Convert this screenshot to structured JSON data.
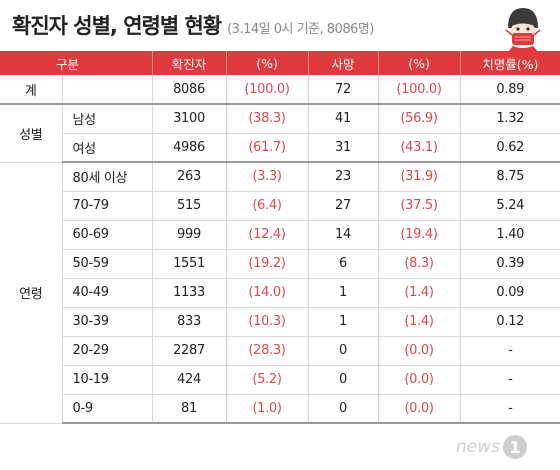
{
  "header": {
    "title": "확진자 성별, 연령별 현황",
    "subtitle": "(3.14일 0시 기준, 8086명)"
  },
  "table_header": [
    "구분",
    "확진자",
    "(%)",
    "사망",
    "(%)",
    "치명률(%)"
  ],
  "rows": {
    "total": {
      "group": "계",
      "sub": "",
      "cases": "8086",
      "cases_pct": "(100.0)",
      "deaths": "72",
      "deaths_pct": "(100.0)",
      "fatality": "0.89"
    },
    "sex_group": "성별",
    "sex": [
      {
        "sub": "남성",
        "cases": "3100",
        "cases_pct": "(38.3)",
        "deaths": "41",
        "deaths_pct": "(56.9)",
        "fatality": "1.32"
      },
      {
        "sub": "여성",
        "cases": "4986",
        "cases_pct": "(61.7)",
        "deaths": "31",
        "deaths_pct": "(43.1)",
        "fatality": "0.62"
      }
    ],
    "age_group": "연령",
    "age": [
      {
        "sub": "80세 이상",
        "cases": "263",
        "cases_pct": "(3.3)",
        "deaths": "23",
        "deaths_pct": "(31.9)",
        "fatality": "8.75"
      },
      {
        "sub": "70-79",
        "cases": "515",
        "cases_pct": "(6.4)",
        "deaths": "27",
        "deaths_pct": "(37.5)",
        "fatality": "5.24"
      },
      {
        "sub": "60-69",
        "cases": "999",
        "cases_pct": "(12.4)",
        "deaths": "14",
        "deaths_pct": "(19.4)",
        "fatality": "1.40"
      },
      {
        "sub": "50-59",
        "cases": "1551",
        "cases_pct": "(19.2)",
        "deaths": "6",
        "deaths_pct": "(8.3)",
        "fatality": "0.39"
      },
      {
        "sub": "40-49",
        "cases": "1133",
        "cases_pct": "(14.0)",
        "deaths": "1",
        "deaths_pct": "(1.4)",
        "fatality": "0.09"
      },
      {
        "sub": "30-39",
        "cases": "833",
        "cases_pct": "(10.3)",
        "deaths": "1",
        "deaths_pct": "(1.4)",
        "fatality": "0.12"
      },
      {
        "sub": "20-29",
        "cases": "2287",
        "cases_pct": "(28.3)",
        "deaths": "0",
        "deaths_pct": "(0.0)",
        "fatality": "-"
      },
      {
        "sub": "10-19",
        "cases": "424",
        "cases_pct": "(5.2)",
        "deaths": "0",
        "deaths_pct": "(0.0)",
        "fatality": "-"
      },
      {
        "sub": "0-9",
        "cases": "81",
        "cases_pct": "(1.0)",
        "deaths": "0",
        "deaths_pct": "(0.0)",
        "fatality": "-"
      }
    ]
  },
  "logo": {
    "text": "news",
    "mark": "1"
  },
  "icons": {
    "mask": "face-mask-icon",
    "logo_mark": "news1-logo-icon"
  },
  "colors": {
    "accent": "#e03a3e",
    "pct_text": "#e0474b",
    "subtitle": "#888888"
  },
  "chart_data": {
    "type": "table",
    "title": "확진자 성별, 연령별 현황",
    "subtitle": "(3.14일 0시 기준, 8086명)",
    "columns": [
      "구분",
      "확진자",
      "(%)",
      "사망",
      "(%)",
      "치명률(%)"
    ],
    "rows": [
      [
        "계",
        "",
        8086,
        100.0,
        72,
        100.0,
        0.89
      ],
      [
        "성별",
        "남성",
        3100,
        38.3,
        41,
        56.9,
        1.32
      ],
      [
        "성별",
        "여성",
        4986,
        61.7,
        31,
        43.1,
        0.62
      ],
      [
        "연령",
        "80세 이상",
        263,
        3.3,
        23,
        31.9,
        8.75
      ],
      [
        "연령",
        "70-79",
        515,
        6.4,
        27,
        37.5,
        5.24
      ],
      [
        "연령",
        "60-69",
        999,
        12.4,
        14,
        19.4,
        1.4
      ],
      [
        "연령",
        "50-59",
        1551,
        19.2,
        6,
        8.3,
        0.39
      ],
      [
        "연령",
        "40-49",
        1133,
        14.0,
        1,
        1.4,
        0.09
      ],
      [
        "연령",
        "30-39",
        833,
        10.3,
        1,
        1.4,
        0.12
      ],
      [
        "연령",
        "20-29",
        2287,
        28.3,
        0,
        0.0,
        null
      ],
      [
        "연령",
        "10-19",
        424,
        5.2,
        0,
        0.0,
        null
      ],
      [
        "연령",
        "0-9",
        81,
        1.0,
        0,
        0.0,
        null
      ]
    ]
  }
}
